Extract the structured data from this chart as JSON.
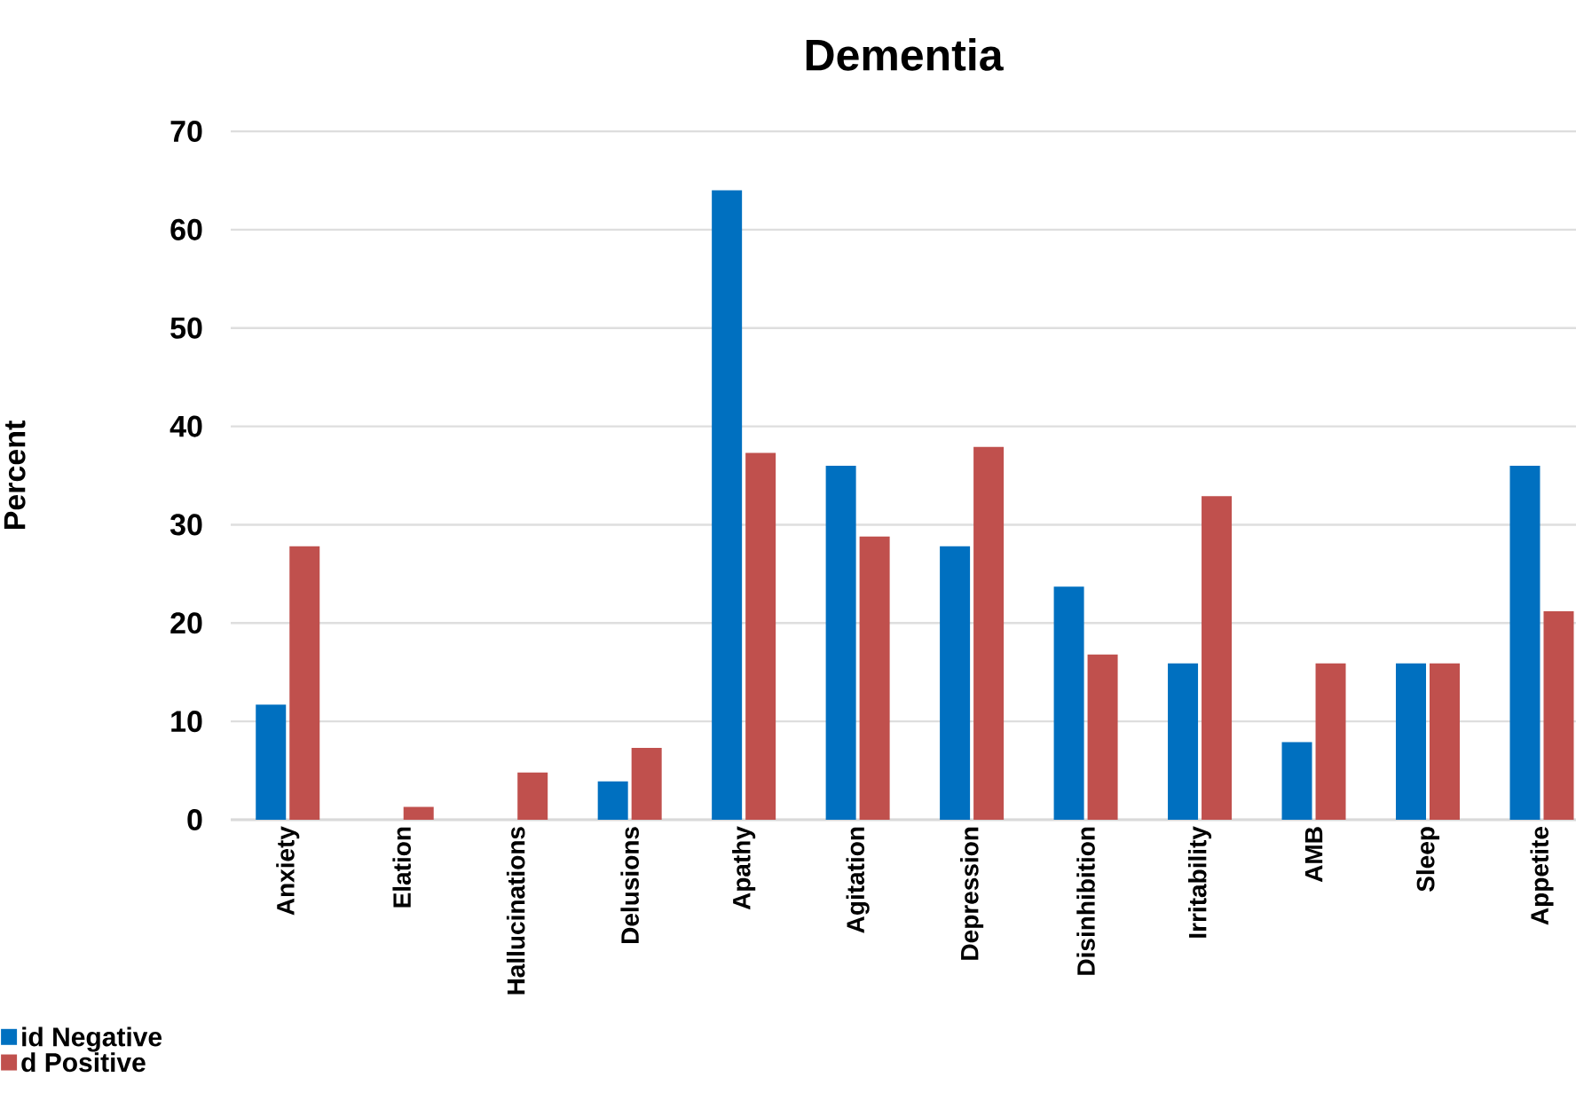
{
  "chart_data": {
    "type": "bar",
    "title": "Dementia",
    "ylabel": "Percent",
    "categories": [
      "Anxiety",
      "Elation",
      "Hallucinations",
      "Delusions",
      "Apathy",
      "Agitation",
      "Depression",
      "Disinhibition",
      "Irritability",
      "AMB",
      "Sleep",
      "Appetite"
    ],
    "series": [
      {
        "name": "id Negative",
        "color": "#0070c0",
        "values": [
          11.7,
          0,
          0,
          3.9,
          64.0,
          36.0,
          27.8,
          23.7,
          15.9,
          7.9,
          15.9,
          36.0
        ]
      },
      {
        "name": "d Positive",
        "color": "#c0504d",
        "values": [
          27.8,
          1.3,
          4.8,
          7.3,
          37.3,
          28.8,
          37.9,
          16.8,
          32.9,
          15.9,
          15.9,
          21.2
        ]
      }
    ],
    "ylim": [
      0,
      70
    ],
    "yticks": [
      0,
      10,
      20,
      30,
      40,
      50,
      60,
      70
    ],
    "grid": "y",
    "legend": "bottom left"
  }
}
